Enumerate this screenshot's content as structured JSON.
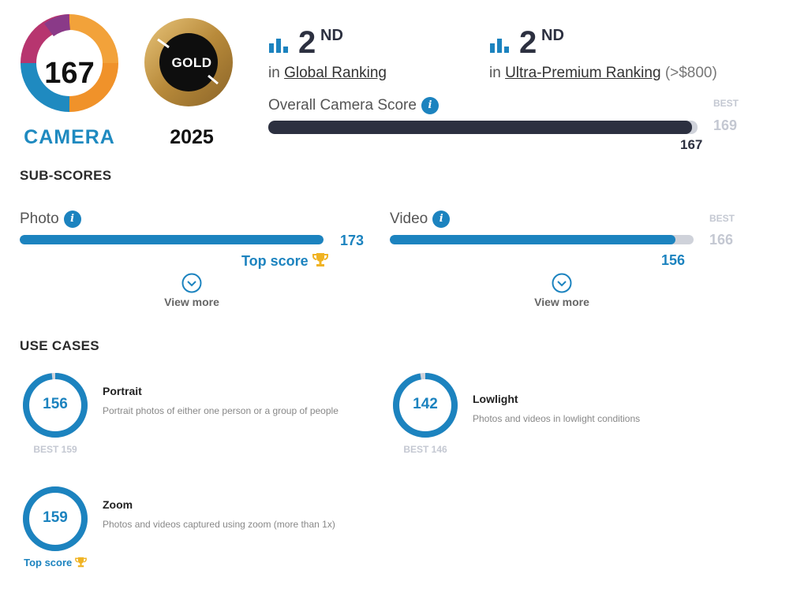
{
  "badge": {
    "score": "167",
    "label": "CAMERA"
  },
  "gold": {
    "label": "GOLD",
    "year": "2025"
  },
  "rankings": [
    {
      "num": "2",
      "ordinal": "ND",
      "prefix": "in",
      "link": "Global Ranking",
      "suffix": ""
    },
    {
      "num": "2",
      "ordinal": "ND",
      "prefix": "in",
      "link": "Ultra-Premium Ranking",
      "suffix": "(>$800)"
    }
  ],
  "overall": {
    "title": "Overall Camera Score",
    "score": "167",
    "best_label": "BEST",
    "best": "169",
    "fraction": 0.988
  },
  "subscores": {
    "title": "SUB-SCORES",
    "photo": {
      "label": "Photo",
      "score": "173",
      "fraction": 1.0,
      "top_score": "Top score",
      "view_more": "View more"
    },
    "video": {
      "label": "Video",
      "score": "156",
      "best_label": "BEST",
      "best": "166",
      "fraction": 0.94,
      "view_more": "View more"
    }
  },
  "use_cases": {
    "title": "USE CASES",
    "items": [
      {
        "name": "Portrait",
        "desc": "Portrait photos of either one person or a group of people",
        "score": "156",
        "best": "BEST 159",
        "fraction": 0.981
      },
      {
        "name": "Lowlight",
        "desc": "Photos and videos in lowlight conditions",
        "score": "142",
        "best": "BEST 146",
        "fraction": 0.973
      },
      {
        "name": "Zoom",
        "desc": "Photos and videos captured using zoom (more than 1x)",
        "score": "159",
        "top": "Top score",
        "fraction": 1.0
      }
    ]
  },
  "colors": {
    "accent": "#1c83bf",
    "dark_bar": "#2c3040",
    "track": "#cfd2da",
    "trophy": "#f0b323"
  }
}
